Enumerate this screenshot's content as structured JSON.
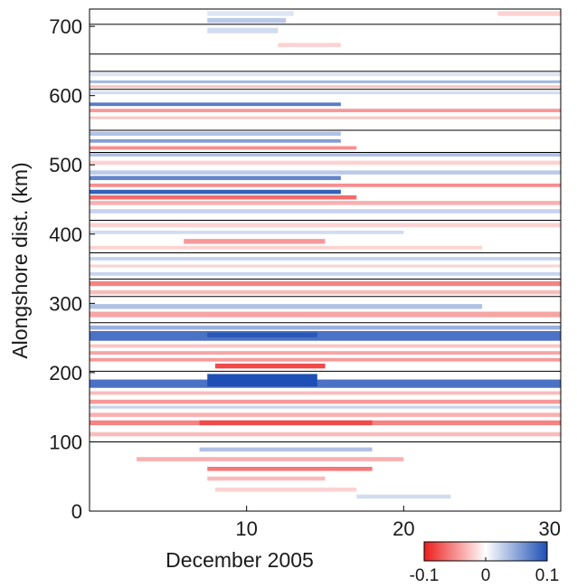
{
  "chart_data": {
    "type": "heatmap",
    "title": "",
    "xlabel": "December 2005",
    "ylabel": "Alongshore dist. (km)",
    "xlim": [
      0,
      30
    ],
    "ylim": [
      0,
      725
    ],
    "x_ticks": [
      {
        "value": 10,
        "label": "10"
      },
      {
        "value": 20,
        "label": "20"
      },
      {
        "value": 30,
        "label": "30"
      }
    ],
    "y_ticks": [
      {
        "value": 0,
        "label": "0"
      },
      {
        "value": 100,
        "label": "100"
      },
      {
        "value": 200,
        "label": "200"
      },
      {
        "value": 300,
        "label": "300"
      },
      {
        "value": 400,
        "label": "400"
      },
      {
        "value": 500,
        "label": "500"
      },
      {
        "value": 600,
        "label": "600"
      },
      {
        "value": 700,
        "label": "700"
      }
    ],
    "segment_boundaries_km": [
      100,
      202,
      272,
      310,
      335,
      373,
      420,
      518,
      550,
      609,
      635,
      660,
      703
    ],
    "colorbar": {
      "range": [
        -0.1,
        0.1
      ],
      "colors": [
        "#ee1c1c",
        "#ffffff",
        "#1e4fb5"
      ],
      "ticks": [
        {
          "value": -0.1,
          "label": "-0.1"
        },
        {
          "value": 0,
          "label": "0"
        },
        {
          "value": 0.1,
          "label": "0.1"
        }
      ]
    },
    "bands": [
      {
        "y0": 715,
        "y1": 722,
        "x0": 7.5,
        "x1": 13,
        "value": 0.015
      },
      {
        "y0": 715,
        "y1": 722,
        "x0": 26,
        "x1": 30,
        "value": -0.02
      },
      {
        "y0": 705,
        "y1": 712,
        "x0": 7.5,
        "x1": 12.5,
        "value": 0.03
      },
      {
        "y0": 690,
        "y1": 698,
        "x0": 7.5,
        "x1": 12,
        "value": 0.02
      },
      {
        "y0": 670,
        "y1": 676,
        "x0": 12,
        "x1": 16,
        "value": -0.02
      },
      {
        "y0": 628,
        "y1": 633,
        "x0": 0,
        "x1": 30,
        "value": 0.015
      },
      {
        "y0": 618,
        "y1": 622,
        "x0": 0,
        "x1": 30,
        "value": 0.04
      },
      {
        "y0": 611,
        "y1": 615,
        "x0": 0,
        "x1": 30,
        "value": -0.025
      },
      {
        "y0": 602,
        "y1": 606,
        "x0": 0,
        "x1": 30,
        "value": 0.02
      },
      {
        "y0": 585,
        "y1": 590,
        "x0": 0,
        "x1": 16,
        "value": 0.075
      },
      {
        "y0": 576,
        "y1": 581,
        "x0": 0,
        "x1": 30,
        "value": -0.045
      },
      {
        "y0": 566,
        "y1": 570,
        "x0": 0,
        "x1": 30,
        "value": -0.025
      },
      {
        "y0": 542,
        "y1": 548,
        "x0": 0,
        "x1": 16,
        "value": 0.035
      },
      {
        "y0": 532,
        "y1": 537,
        "x0": 0,
        "x1": 16,
        "value": 0.055
      },
      {
        "y0": 522,
        "y1": 527,
        "x0": 0,
        "x1": 17,
        "value": -0.05
      },
      {
        "y0": 512,
        "y1": 517,
        "x0": 0,
        "x1": 30,
        "value": 0.035
      },
      {
        "y0": 500,
        "y1": 506,
        "x0": 0,
        "x1": 30,
        "value": -0.02
      },
      {
        "y0": 486,
        "y1": 492,
        "x0": 0,
        "x1": 30,
        "value": 0.03
      },
      {
        "y0": 478,
        "y1": 484,
        "x0": 0,
        "x1": 16,
        "value": 0.07
      },
      {
        "y0": 468,
        "y1": 473,
        "x0": 0,
        "x1": 30,
        "value": -0.05
      },
      {
        "y0": 458,
        "y1": 464,
        "x0": 0,
        "x1": 16,
        "value": 0.09
      },
      {
        "y0": 450,
        "y1": 456,
        "x0": 0,
        "x1": 17,
        "value": -0.065
      },
      {
        "y0": 442,
        "y1": 448,
        "x0": 0,
        "x1": 30,
        "value": -0.035
      },
      {
        "y0": 430,
        "y1": 436,
        "x0": 0,
        "x1": 30,
        "value": 0.025
      },
      {
        "y0": 410,
        "y1": 416,
        "x0": 0,
        "x1": 30,
        "value": -0.02
      },
      {
        "y0": 400,
        "y1": 405,
        "x0": 0,
        "x1": 20,
        "value": 0.02
      },
      {
        "y0": 386,
        "y1": 393,
        "x0": 6,
        "x1": 15,
        "value": -0.045
      },
      {
        "y0": 378,
        "y1": 383,
        "x0": 0,
        "x1": 25,
        "value": -0.02
      },
      {
        "y0": 362,
        "y1": 367,
        "x0": 0,
        "x1": 30,
        "value": 0.025
      },
      {
        "y0": 352,
        "y1": 356,
        "x0": 0,
        "x1": 30,
        "value": -0.02
      },
      {
        "y0": 340,
        "y1": 345,
        "x0": 0,
        "x1": 30,
        "value": 0.025
      },
      {
        "y0": 325,
        "y1": 332,
        "x0": 0,
        "x1": 30,
        "value": -0.055
      },
      {
        "y0": 313,
        "y1": 319,
        "x0": 0,
        "x1": 30,
        "value": -0.03
      },
      {
        "y0": 292,
        "y1": 299,
        "x0": 0,
        "x1": 25,
        "value": 0.035
      },
      {
        "y0": 280,
        "y1": 288,
        "x0": 0,
        "x1": 30,
        "value": -0.04
      },
      {
        "y0": 262,
        "y1": 268,
        "x0": 0,
        "x1": 30,
        "value": 0.045
      },
      {
        "y0": 246,
        "y1": 260,
        "x0": 0,
        "x1": 30,
        "value": 0.08
      },
      {
        "y0": 251,
        "y1": 258,
        "x0": 7.5,
        "x1": 14.5,
        "value": 0.095
      },
      {
        "y0": 236,
        "y1": 241,
        "x0": 0,
        "x1": 30,
        "value": -0.025
      },
      {
        "y0": 226,
        "y1": 231,
        "x0": 0,
        "x1": 30,
        "value": -0.04
      },
      {
        "y0": 216,
        "y1": 221,
        "x0": 0,
        "x1": 30,
        "value": -0.045
      },
      {
        "y0": 206,
        "y1": 213,
        "x0": 8,
        "x1": 15,
        "value": -0.08
      },
      {
        "y0": 178,
        "y1": 190,
        "x0": 0,
        "x1": 30,
        "value": 0.08
      },
      {
        "y0": 180,
        "y1": 198,
        "x0": 7.5,
        "x1": 14.5,
        "value": 0.1
      },
      {
        "y0": 168,
        "y1": 173,
        "x0": 0,
        "x1": 30,
        "value": -0.03
      },
      {
        "y0": 155,
        "y1": 161,
        "x0": 0,
        "x1": 30,
        "value": -0.045
      },
      {
        "y0": 148,
        "y1": 152,
        "x0": 0,
        "x1": 30,
        "value": 0.025
      },
      {
        "y0": 136,
        "y1": 142,
        "x0": 0,
        "x1": 30,
        "value": -0.035
      },
      {
        "y0": 124,
        "y1": 131,
        "x0": 0,
        "x1": 30,
        "value": -0.055
      },
      {
        "y0": 124,
        "y1": 131,
        "x0": 7,
        "x1": 18,
        "value": -0.08
      },
      {
        "y0": 108,
        "y1": 114,
        "x0": 0,
        "x1": 30,
        "value": -0.03
      },
      {
        "y0": 86,
        "y1": 92,
        "x0": 7,
        "x1": 18,
        "value": 0.035
      },
      {
        "y0": 72,
        "y1": 78,
        "x0": 3,
        "x1": 20,
        "value": -0.035
      },
      {
        "y0": 58,
        "y1": 64,
        "x0": 7.5,
        "x1": 18,
        "value": -0.06
      },
      {
        "y0": 44,
        "y1": 50,
        "x0": 7.5,
        "x1": 15,
        "value": -0.03
      },
      {
        "y0": 28,
        "y1": 34,
        "x0": 8,
        "x1": 17,
        "value": -0.02
      },
      {
        "y0": 18,
        "y1": 24,
        "x0": 17,
        "x1": 23,
        "value": 0.02
      }
    ]
  }
}
